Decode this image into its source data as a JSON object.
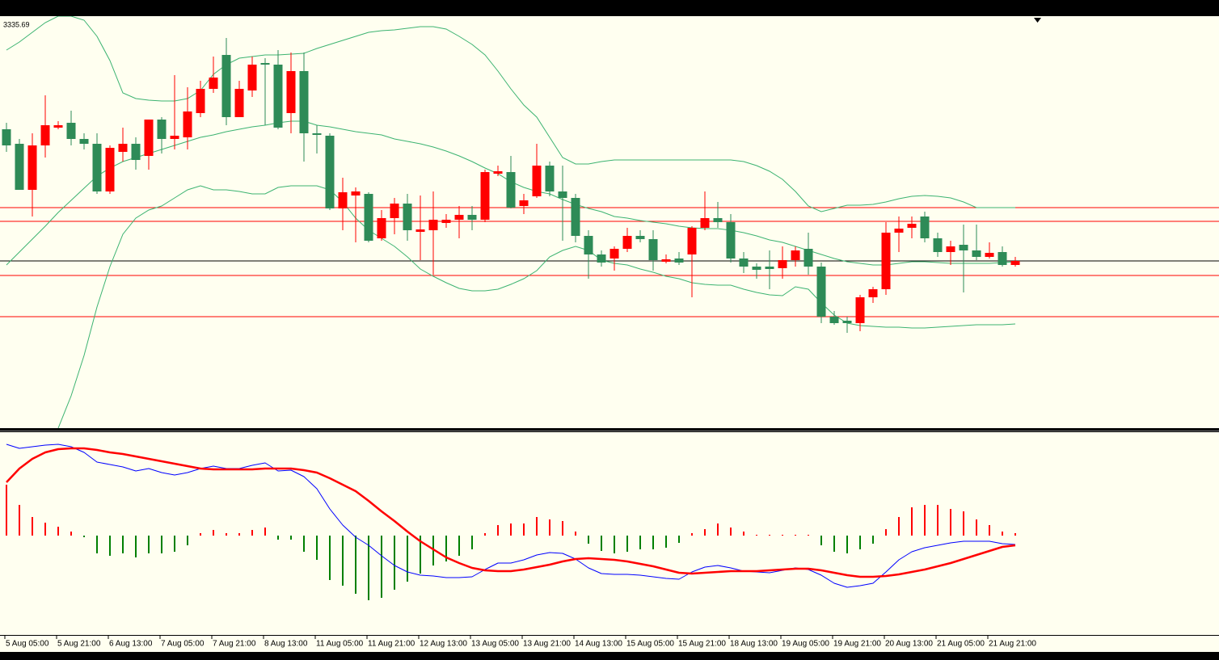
{
  "chart_data": [
    {
      "type": "candlestick",
      "price_label": "3335.69",
      "categories": [
        "5 Aug 05:00",
        null,
        null,
        null,
        "5 Aug 21:00",
        null,
        null,
        null,
        "6 Aug 13:00",
        null,
        null,
        null,
        "7 Aug 05:00",
        null,
        null,
        null,
        "7 Aug 21:00",
        null,
        null,
        null,
        "8 Aug 13:00",
        null,
        null,
        null,
        "11 Aug 05:00",
        null,
        null,
        null,
        "11 Aug 21:00",
        null,
        null,
        null,
        "12 Aug 13:00",
        null,
        null,
        null,
        "13 Aug 05:00",
        null,
        null,
        null,
        "13 Aug 21:00",
        null,
        null,
        null,
        "14 Aug 13:00",
        null,
        null,
        null,
        "15 Aug 05:00",
        null,
        null,
        null,
        "15 Aug 21:00",
        null,
        null,
        null,
        "18 Aug 13:00",
        null,
        null,
        null,
        "19 Aug 05:00",
        null,
        null,
        null,
        "19 Aug 21:00",
        null,
        null,
        null,
        "20 Aug 13:00",
        null,
        null,
        null,
        "21 Aug 05:00",
        null,
        null,
        null,
        "21 Aug 21:00",
        null,
        null
      ],
      "open": [
        3375,
        3370.5,
        3356.25,
        3370,
        3375.5,
        3377,
        3372,
        3370.5,
        3355.75,
        3368,
        3370.5,
        3366.75,
        3378,
        3372,
        3372.5,
        3380,
        3387.5,
        3398,
        3378.75,
        3387,
        3395.5,
        3395,
        3380,
        3393,
        3373.75,
        3373,
        3350.5,
        3354.5,
        3355,
        3341.25,
        3347.5,
        3352,
        3343.25,
        3343.75,
        3346,
        3347,
        3348.5,
        3347,
        3361.25,
        3361.75,
        3351.25,
        3354.25,
        3363.75,
        3355.75,
        3353.75,
        3342,
        3336.25,
        3335,
        3338,
        3342,
        3341,
        3334,
        3335,
        3336.25,
        3344.5,
        3347.5,
        3346.25,
        3335,
        3332.5,
        3332.5,
        3332,
        3334.5,
        3338,
        3332.5,
        3317,
        3315.75,
        3315,
        3323,
        3325.5,
        3343,
        3344.5,
        3348,
        3341.25,
        3337,
        3339.25,
        3337.5,
        3335.5,
        3337,
        3333
      ],
      "high": [
        3377,
        3372,
        3373.75,
        3385.5,
        3377.5,
        3380.75,
        3373.75,
        3373.75,
        3370,
        3375.5,
        3372.5,
        3378,
        3378.75,
        3391.75,
        3388,
        3390,
        3397.5,
        3403.25,
        3390,
        3397.5,
        3397,
        3399.5,
        3398.75,
        3398.75,
        3376.25,
        3373.75,
        3360,
        3357,
        3355.5,
        3350,
        3353.75,
        3355,
        3354.5,
        3355.75,
        3348.75,
        3351.25,
        3351.25,
        3362.5,
        3363.75,
        3366.75,
        3355,
        3370.5,
        3365,
        3363.75,
        3355,
        3343.75,
        3337.5,
        3338.75,
        3344.5,
        3343.75,
        3343.75,
        3336.25,
        3337,
        3345,
        3355.75,
        3352.5,
        3348.75,
        3337,
        3333.5,
        3337.5,
        3338.75,
        3338.75,
        3343,
        3333.75,
        3318.75,
        3317,
        3323.75,
        3326.25,
        3346.25,
        3348,
        3348,
        3349.5,
        3343,
        3340.5,
        3345.5,
        3345.5,
        3340,
        3338.75,
        3335.5
      ],
      "low": [
        3368,
        3356.25,
        3348,
        3366.25,
        3375,
        3370,
        3368.75,
        3355,
        3355,
        3365,
        3362.5,
        3362.5,
        3367.5,
        3368.75,
        3368.75,
        3378.75,
        3386.25,
        3376.25,
        3378.75,
        3385,
        3376.25,
        3375,
        3373.75,
        3365,
        3367.5,
        3350,
        3343.75,
        3340,
        3340,
        3340.5,
        3342.5,
        3340.5,
        3334.5,
        3330,
        3344.5,
        3341.25,
        3343.75,
        3346.25,
        3360.5,
        3350.5,
        3348.75,
        3353.75,
        3354.25,
        3340.5,
        3340,
        3328.75,
        3332.5,
        3331.25,
        3337,
        3340,
        3331.25,
        3333.5,
        3333,
        3323,
        3343.75,
        3344.5,
        3333.75,
        3330.5,
        3328.75,
        3325.5,
        3328.75,
        3332.5,
        3330,
        3315,
        3314.5,
        3312,
        3312.5,
        3321.25,
        3323.75,
        3337,
        3341.25,
        3340,
        3335.5,
        3333,
        3324.5,
        3334.5,
        3335,
        3332.5,
        3332.5
      ],
      "close": [
        3370,
        3356.25,
        3370,
        3376.25,
        3376.25,
        3372,
        3370.5,
        3355.75,
        3369.25,
        3370.5,
        3365.5,
        3378,
        3372,
        3373,
        3380.5,
        3387.5,
        3391,
        3378.75,
        3387.5,
        3395,
        3395,
        3375.5,
        3393,
        3373.75,
        3373.25,
        3350.5,
        3355.5,
        3355.75,
        3340.5,
        3347.5,
        3352,
        3343.75,
        3344,
        3347,
        3347,
        3348.5,
        3347,
        3361.75,
        3362,
        3350.75,
        3353,
        3363.75,
        3355.75,
        3353.75,
        3342,
        3336.25,
        3333.75,
        3338,
        3342,
        3341,
        3334.5,
        3334.75,
        3333.75,
        3344.5,
        3347.5,
        3346.25,
        3335,
        3332.5,
        3331.5,
        3331.75,
        3334.5,
        3337.5,
        3332.5,
        3317,
        3315,
        3315,
        3323,
        3325.5,
        3343,
        3344.25,
        3345.75,
        3341.25,
        3337,
        3338.75,
        3337.5,
        3335.5,
        3336.75,
        3333,
        3334.25
      ],
      "up_color": "#ff0000",
      "down_color": "#2e8b57",
      "bands": [
        {
          "color": "#3cb371",
          "values": [
            3399.5,
            3402,
            3405,
            3408,
            3410,
            3410,
            3408.75,
            3403.75,
            3396.25,
            3386.25,
            3384.5,
            3384,
            3383.75,
            3383.75,
            3384.5,
            3387,
            3392,
            3395,
            3397,
            3397.5,
            3398,
            3398,
            3398.25,
            3398.5,
            3400,
            3401.25,
            3402.5,
            3403.75,
            3405,
            3405.5,
            3405.75,
            3406.25,
            3406.75,
            3406.75,
            3406,
            3403.75,
            3401.25,
            3398,
            3393,
            3387.5,
            3382.5,
            3378.75,
            3372.5,
            3366.25,
            3364.25,
            3364.25,
            3365,
            3365.5,
            3365.5,
            3365.5,
            3365.5,
            3365.5,
            3365.5,
            3365.5,
            3365.5,
            3365.5,
            3365.5,
            3365,
            3363.75,
            3362,
            3359.5,
            3355.75,
            3351.25,
            3349.5,
            3350.5,
            3351.5,
            3351.5,
            3351.75,
            3352.5,
            3353.5,
            3354.25,
            3354.5,
            3354.25,
            3353.75,
            3352.5,
            3350.75,
            3350.75,
            3350.75,
            3350.75
          ]
        },
        {
          "color": "#3cb371",
          "values": [
            3333,
            3337,
            3341,
            3345,
            3349.25,
            3353,
            3356.75,
            3360.5,
            3363,
            3365,
            3366.25,
            3367.5,
            3368.75,
            3370,
            3371.25,
            3372.5,
            3373.25,
            3374.25,
            3375,
            3375.75,
            3376.25,
            3377,
            3377.5,
            3377.5,
            3376.25,
            3375.75,
            3375,
            3374.25,
            3373.75,
            3373.25,
            3372,
            3371.25,
            3370.5,
            3369.5,
            3368.25,
            3366.75,
            3365,
            3363,
            3361.25,
            3358.75,
            3357,
            3355.75,
            3355,
            3353.25,
            3351.75,
            3350.5,
            3349.5,
            3348,
            3347.5,
            3346.75,
            3346.25,
            3345.75,
            3345,
            3344.5,
            3344.25,
            3344.25,
            3343.75,
            3343,
            3342,
            3340.75,
            3340,
            3338.75,
            3337.5,
            3336.25,
            3335,
            3334,
            3333.5,
            3333,
            3333,
            3333.5,
            3334,
            3334,
            3333.75,
            3333.5,
            3333.5,
            3333.5,
            3333.5,
            3333.75,
            3334
          ]
        },
        {
          "color": "#3cb371",
          "values": [
            null,
            null,
            null,
            null,
            3282.5,
            3292.5,
            3305,
            3320,
            3332.5,
            3342.5,
            3347.5,
            3350,
            3351.25,
            3353.75,
            3356.25,
            3357.5,
            3356.25,
            3356.25,
            3355.75,
            3355,
            3355,
            3357,
            3357.5,
            3357.5,
            3357.5,
            3356.25,
            3352.5,
            3347.5,
            3343.75,
            3341.25,
            3338.75,
            3335.5,
            3331.75,
            3329.5,
            3327.5,
            3325.75,
            3325,
            3325,
            3325.5,
            3327,
            3328.75,
            3331.25,
            3335.5,
            3337.5,
            3338.75,
            3337.5,
            3334.5,
            3333.5,
            3333,
            3331.75,
            3330.75,
            3329.5,
            3328.75,
            3327.5,
            3327,
            3326.75,
            3326.75,
            3325.5,
            3324.5,
            3323.75,
            3323.5,
            3326.25,
            3325.5,
            3321.25,
            3317.5,
            3315,
            3314.25,
            3314,
            3313.75,
            3313.75,
            3313.5,
            3313.5,
            3313.75,
            3314,
            3314.25,
            3314.5,
            3314.5,
            3314.5,
            3314.75
          ]
        }
      ],
      "hlines": [
        {
          "value": 3350.75,
          "color": "#ff0000"
        },
        {
          "value": 3346.5,
          "color": "#ff0000"
        },
        {
          "value": 3334.25,
          "color": "#000000"
        },
        {
          "value": 3329.75,
          "color": "#ff0000"
        },
        {
          "value": 3317,
          "color": "#ff0000"
        }
      ],
      "ylim": [
        3282.5,
        3410
      ]
    },
    {
      "type": "macd",
      "histogram": {
        "up_color": "#ff0000",
        "down_color": "#008000",
        "values": [
          3.15,
          1.9,
          1.15,
          0.8,
          0.55,
          0.25,
          -0.1,
          -1.1,
          -1.25,
          -1.1,
          -1.35,
          -1.1,
          -1.1,
          -1,
          -0.6,
          0.15,
          0.35,
          0.15,
          0.15,
          0.35,
          0.5,
          -0.25,
          -0.25,
          -1,
          -1.5,
          -2.75,
          -3.1,
          -3.6,
          -4,
          -3.85,
          -3.35,
          -2.85,
          -2.35,
          -1.85,
          -1.6,
          -1.25,
          -0.85,
          0.15,
          0.65,
          0.75,
          0.75,
          1.15,
          1,
          0.9,
          0.25,
          -0.5,
          -0.95,
          -1.1,
          -1,
          -0.85,
          -0.85,
          -0.75,
          -0.45,
          0.15,
          0.4,
          0.75,
          0.5,
          0.25,
          0.05,
          0.05,
          0.05,
          0.05,
          0.05,
          -0.6,
          -1,
          -1.1,
          -0.85,
          -0.5,
          0.4,
          1.15,
          1.75,
          1.9,
          1.9,
          1.65,
          1.5,
          1,
          0.65,
          0.25,
          0.15
        ]
      },
      "series": [
        {
          "color": "#0000ff",
          "width": 1,
          "values": [
            5.65,
            5.4,
            5.5,
            5.6,
            5.65,
            5.5,
            5.15,
            4.55,
            4.4,
            4.25,
            4,
            4.15,
            3.9,
            3.75,
            3.9,
            4.15,
            4.3,
            4.15,
            4.15,
            4.35,
            4.5,
            4,
            4.05,
            3.65,
            2.9,
            1.65,
            0.65,
            -0.1,
            -0.6,
            -1.25,
            -1.85,
            -2.25,
            -2.45,
            -2.5,
            -2.6,
            -2.6,
            -2.55,
            -2.1,
            -1.7,
            -1.7,
            -1.5,
            -1.2,
            -1.05,
            -1.1,
            -1.45,
            -2,
            -2.35,
            -2.4,
            -2.4,
            -2.45,
            -2.55,
            -2.65,
            -2.7,
            -2.25,
            -1.95,
            -1.85,
            -2,
            -2.2,
            -2.25,
            -2.3,
            -2.15,
            -2,
            -2.1,
            -2.45,
            -2.95,
            -3.2,
            -3.1,
            -2.95,
            -2.25,
            -1.5,
            -1,
            -0.75,
            -0.6,
            -0.45,
            -0.35,
            -0.35,
            -0.35,
            -0.5,
            -0.55
          ]
        },
        {
          "color": "#ff0000",
          "width": 2.5,
          "values": [
            3.3,
            4.15,
            4.75,
            5.15,
            5.35,
            5.4,
            5.4,
            5.3,
            5.15,
            5.05,
            4.9,
            4.75,
            4.6,
            4.45,
            4.3,
            4.15,
            4.1,
            4.1,
            4.1,
            4.1,
            4.15,
            4.15,
            4.15,
            4.05,
            3.9,
            3.55,
            3.15,
            2.75,
            2.15,
            1.5,
            0.9,
            0.25,
            -0.35,
            -0.85,
            -1.35,
            -1.7,
            -2,
            -2.15,
            -2.2,
            -2.2,
            -2.1,
            -1.95,
            -1.8,
            -1.6,
            -1.45,
            -1.4,
            -1.45,
            -1.5,
            -1.6,
            -1.75,
            -1.9,
            -2.1,
            -2.3,
            -2.35,
            -2.3,
            -2.25,
            -2.2,
            -2.2,
            -2.2,
            -2.15,
            -2.1,
            -2.05,
            -2.05,
            -2.15,
            -2.3,
            -2.45,
            -2.55,
            -2.55,
            -2.5,
            -2.4,
            -2.25,
            -2.1,
            -1.9,
            -1.7,
            -1.45,
            -1.2,
            -0.95,
            -0.7,
            -0.6
          ]
        }
      ],
      "ylim": [
        -6.1,
        5.9
      ]
    }
  ]
}
